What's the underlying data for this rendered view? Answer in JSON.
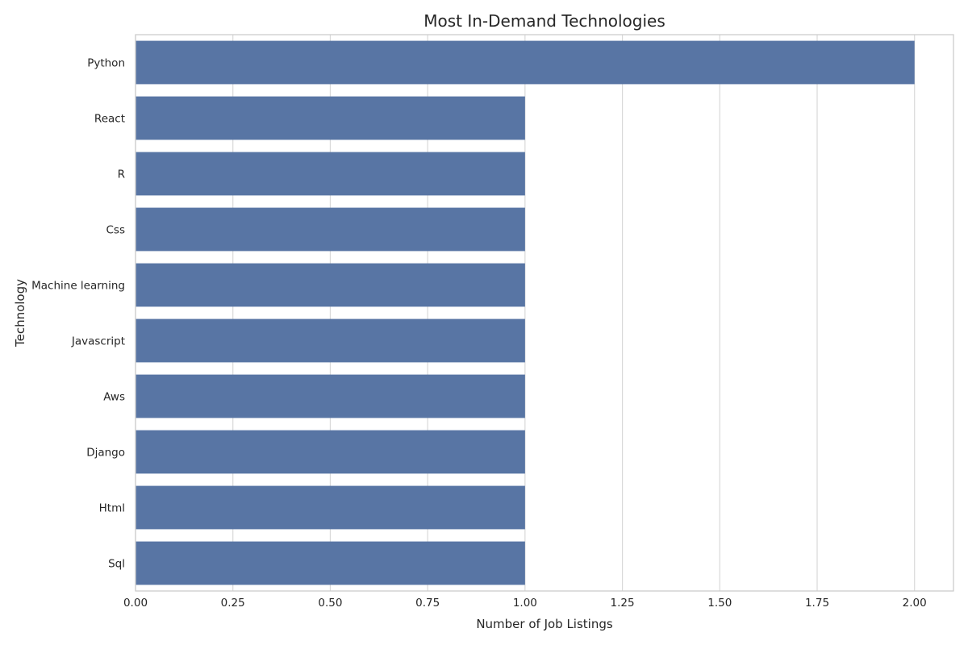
{
  "chart_data": {
    "type": "bar",
    "orientation": "horizontal",
    "title": "Most In-Demand Technologies",
    "xlabel": "Number of Job Listings",
    "ylabel": "Technology",
    "categories": [
      "Python",
      "React",
      "R",
      "Css",
      "Machine learning",
      "Javascript",
      "Aws",
      "Django",
      "Html",
      "Sql"
    ],
    "values": [
      2,
      1,
      1,
      1,
      1,
      1,
      1,
      1,
      1,
      1
    ],
    "xlim": [
      0,
      2.1
    ],
    "xticks": [
      "0.00",
      "0.25",
      "0.50",
      "0.75",
      "1.00",
      "1.25",
      "1.50",
      "1.75",
      "2.00"
    ],
    "grid": "vertical",
    "colors": {
      "bar": "#5875a4",
      "grid": "#d9d9d9",
      "frame": "#cccccc",
      "text": "#262626"
    }
  }
}
